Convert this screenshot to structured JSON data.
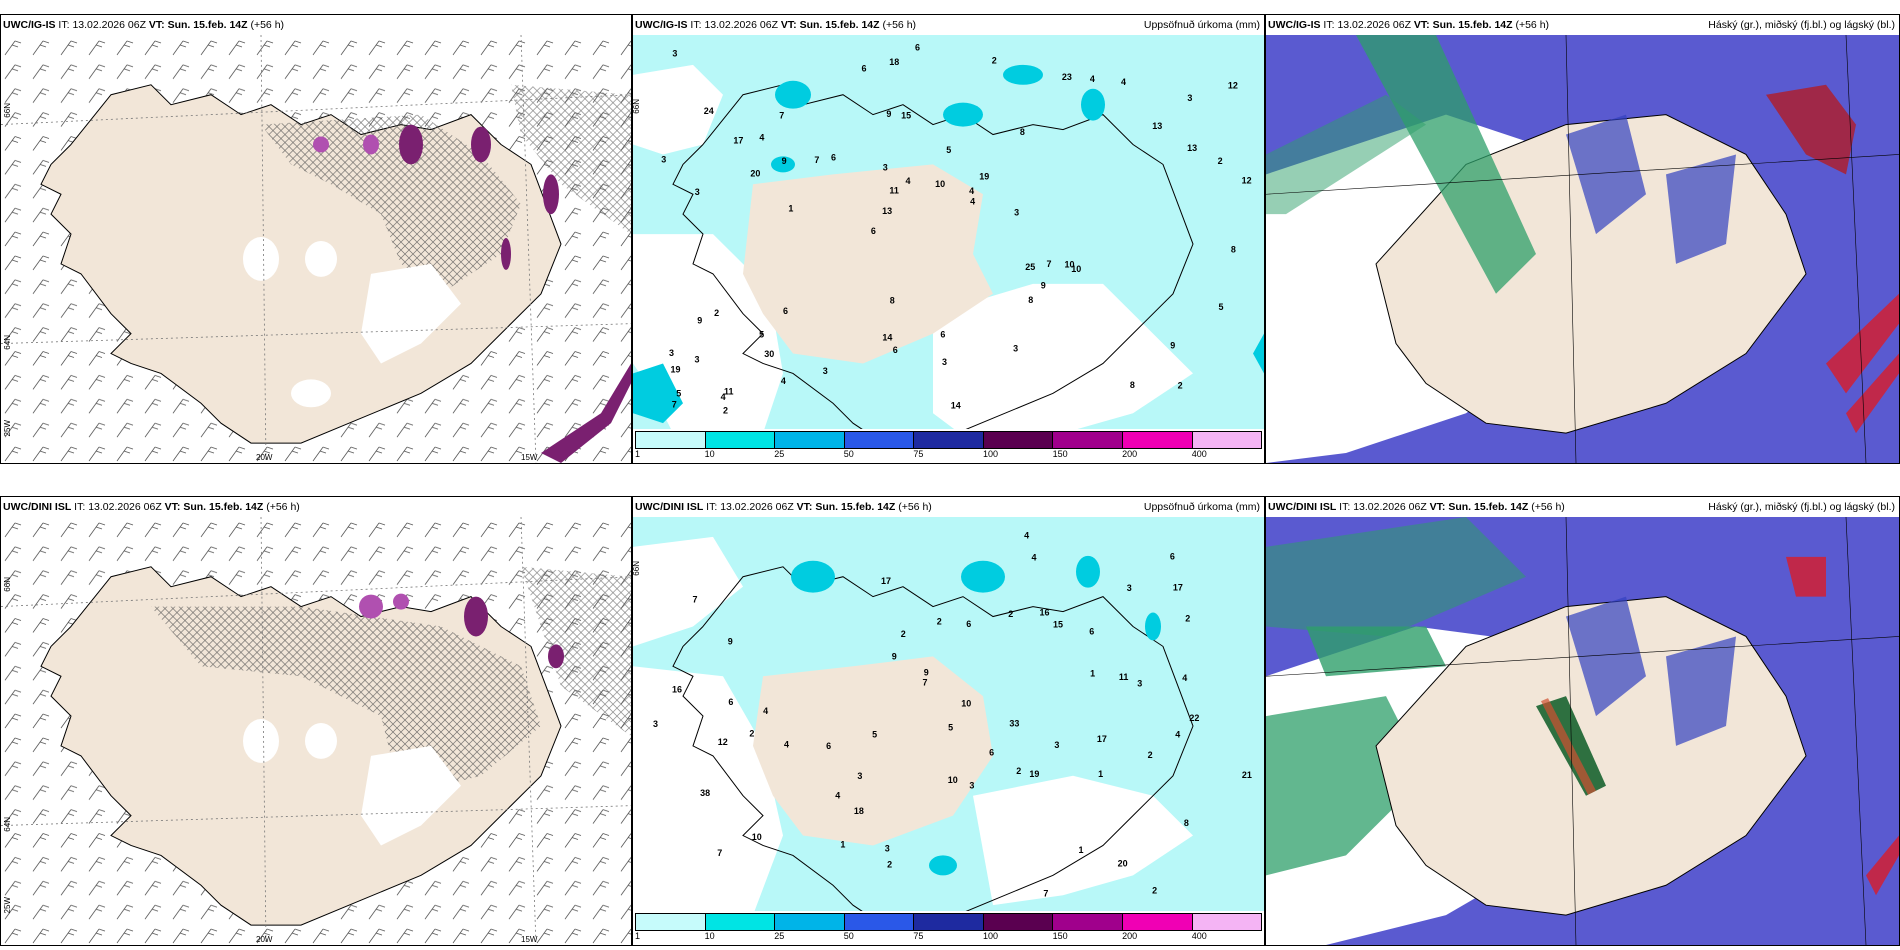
{
  "panels": {
    "p1": {
      "model": "UWC/IG-IS",
      "it_label": "IT:",
      "it": "13.02.2026 06Z",
      "vt_label": "VT:",
      "vt": "Sun. 15.feb. 14Z",
      "lead": "(+56 h)",
      "right": ""
    },
    "p2": {
      "model": "UWC/IG-IS",
      "it_label": "IT:",
      "it": "13.02.2026 06Z",
      "vt_label": "VT:",
      "vt": "Sun. 15.feb. 14Z",
      "lead": "(+56 h)",
      "right": "Uppsöfnuð úrkoma (mm)"
    },
    "p3": {
      "model": "UWC/IG-IS",
      "it_label": "IT:",
      "it": "13.02.2026 06Z",
      "vt_label": "VT:",
      "vt": "Sun. 15.feb. 14Z",
      "lead": "(+56 h)",
      "right": "Háský (gr.), miðský (fj.bl.) og lágský (bl.)"
    },
    "p4": {
      "model": "UWC/DINI ISL",
      "it_label": "IT:",
      "it": "13.02.2026 06Z",
      "vt_label": "VT:",
      "vt": "Sun. 15.feb. 14Z",
      "lead": "(+56 h)",
      "right": ""
    },
    "p5": {
      "model": "UWC/DINI ISL",
      "it_label": "IT:",
      "it": "13.02.2026 06Z",
      "vt_label": "VT:",
      "vt": "Sun. 15.feb. 14Z",
      "lead": "(+56 h)",
      "right": "Uppsöfnuð úrkoma (mm)"
    },
    "p6": {
      "model": "UWC/DINI ISL",
      "it_label": "IT:",
      "it": "13.02.2026 06Z",
      "vt_label": "VT:",
      "vt": "Sun. 15.feb. 14Z",
      "lead": "(+56 h)",
      "right": "Háský (gr.), miðský (fj.bl.) og lágský (bl.)"
    }
  },
  "axes": {
    "lat66": "66N",
    "lat64": "64N",
    "lon25": "25W",
    "lon20": "20W",
    "lon15": "15W"
  },
  "colorbar": {
    "labels": [
      "1",
      "10",
      "25",
      "50",
      "75",
      "100",
      "150",
      "200",
      "400"
    ],
    "colors": [
      "#c6fbfb",
      "#00e4e4",
      "#00b4e8",
      "#2a58e8",
      "#1e2aa0",
      "#5a0050",
      "#a0008c",
      "#f000b4",
      "#f4b4f4"
    ]
  },
  "precip_values_top": [
    "2",
    "3",
    "3",
    "6",
    "8",
    "11",
    "9",
    "5",
    "2",
    "6",
    "19",
    "30",
    "15",
    "19",
    "10",
    "24",
    "18",
    "12",
    "25",
    "13",
    "13",
    "14",
    "11",
    "7",
    "23",
    "6",
    "8",
    "9",
    "10",
    "14",
    "7",
    "20",
    "8",
    "4",
    "2",
    "4",
    "5",
    "6",
    "4",
    "9",
    "13",
    "12",
    "9",
    "3",
    "5",
    "2",
    "7",
    "6",
    "4",
    "6",
    "1",
    "3",
    "4",
    "4",
    "4",
    "2",
    "6",
    "4",
    "5",
    "8",
    "3",
    "7",
    "9",
    "3",
    "3",
    "17",
    "8",
    "3",
    "3",
    "10",
    "3",
    "3"
  ],
  "precip_values_bottom": [
    "2",
    "2",
    "2",
    "7",
    "8",
    "9",
    "10",
    "6",
    "6",
    "2",
    "15",
    "20",
    "18",
    "17",
    "33",
    "38",
    "17",
    "10",
    "16",
    "7",
    "6",
    "6",
    "11",
    "21",
    "22",
    "6",
    "4",
    "5",
    "7",
    "17",
    "19",
    "12",
    "4",
    "16",
    "2",
    "2",
    "4",
    "1",
    "3",
    "7",
    "3",
    "3",
    "1",
    "4",
    "5",
    "4",
    "2",
    "4",
    "2",
    "10",
    "3",
    "4",
    "1",
    "3",
    "9",
    "3",
    "2",
    "9",
    "6",
    "1",
    "3"
  ],
  "colors": {
    "land": "#f2e6d8",
    "precip_light": "#b8f8f8",
    "sea": "#ffffff",
    "cloud_high": "#2e9f6a",
    "cloud_mid": "#5a5ad0",
    "cloud_low": "#3240c0",
    "cloud_red": "#c0284a"
  }
}
